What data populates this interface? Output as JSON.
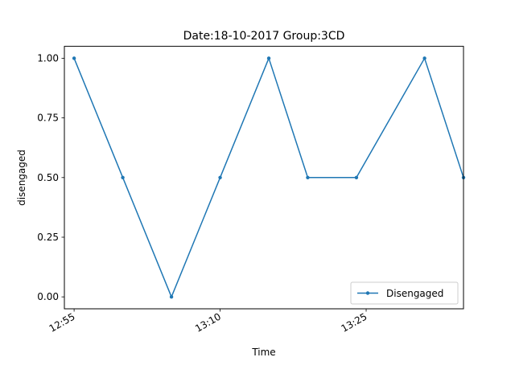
{
  "chart_data": {
    "type": "line",
    "title": "Date:18-10-2017  Group:3CD",
    "xlabel": "Time",
    "ylabel": "disengaged",
    "x_ticks": [
      "12:55",
      "13:10",
      "13:25"
    ],
    "y_ticks": [
      "0.00",
      "0.25",
      "0.50",
      "0.75",
      "1.00"
    ],
    "xlim": [
      "12:54",
      "13:35"
    ],
    "ylim": [
      -0.05,
      1.05
    ],
    "grid": false,
    "legend_position": "lower-right",
    "series": [
      {
        "name": "Disengaged",
        "color": "#1f77b4",
        "marker": "point",
        "x": [
          "12:55",
          "13:00",
          "13:05",
          "13:10",
          "13:15",
          "13:19",
          "13:24",
          "13:31",
          "13:35"
        ],
        "y": [
          1.0,
          0.5,
          0.0,
          0.5,
          1.0,
          0.5,
          0.5,
          1.0,
          0.5
        ]
      }
    ]
  }
}
